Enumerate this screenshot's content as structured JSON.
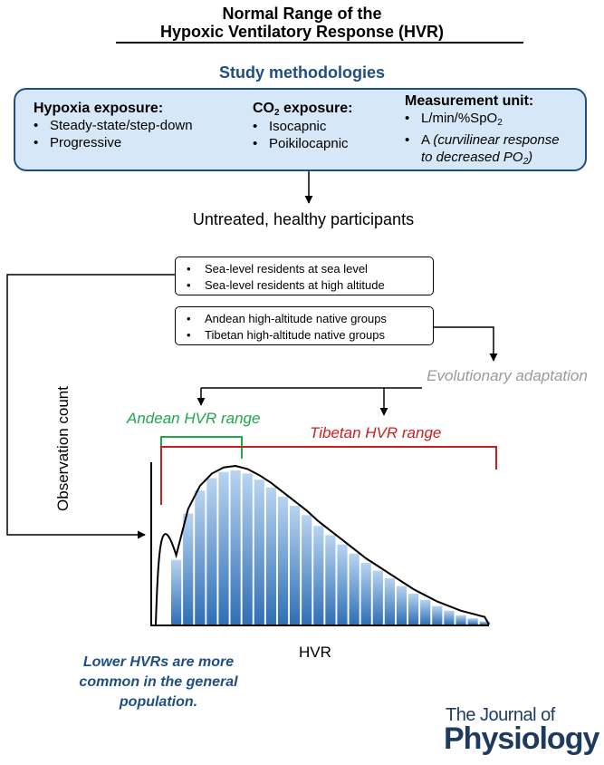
{
  "title": {
    "line1": "Normal Range of the",
    "line2": "Hypoxic Ventilatory Response (HVR)"
  },
  "methodologies": {
    "heading": "Study methodologies",
    "hypoxia": {
      "title": "Hypoxia exposure:",
      "items": [
        "Steady-state/step-down",
        "Progressive"
      ]
    },
    "co2": {
      "title_main": "CO",
      "title_sub": "2",
      "title_tail": " exposure:",
      "items": [
        "Isocapnic",
        "Poikilocapnic"
      ]
    },
    "unit": {
      "title": "Measurement unit:",
      "item1_main": "L/min/%SpO",
      "item1_sub": "2",
      "item2_main": "A ",
      "item2_italic": "(curvilinear response",
      "item2_line2": "to decreased PO",
      "item2_sub": "2",
      "item2_tail": ")"
    }
  },
  "participants": "Untreated, healthy participants",
  "groups1": [
    "Sea-level residents at sea level",
    "Sea-level residents at high altitude"
  ],
  "groups2": [
    "Andean high-altitude native groups",
    "Tibetan high-altitude native groups"
  ],
  "evolution": "Evolutionary adaptation",
  "ranges": {
    "andean": "Andean HVR range",
    "tibetan": "Tibetan HVR range",
    "andean_color": "#22a64a",
    "tibetan_color": "#c81e1e"
  },
  "chart_data": {
    "type": "bar",
    "xlabel": "HVR",
    "ylabel": "Observation count",
    "bar_color": "#4a8fd4",
    "values": [
      0.42,
      0.72,
      0.87,
      0.95,
      0.99,
      1.0,
      0.98,
      0.94,
      0.89,
      0.83,
      0.77,
      0.71,
      0.64,
      0.58,
      0.52,
      0.46,
      0.4,
      0.35,
      0.3,
      0.25,
      0.2,
      0.16,
      0.12,
      0.09,
      0.06,
      0.04,
      0.02
    ]
  },
  "note": "Lower HVRs are more common in the general population.",
  "journal": {
    "line1": "The Journal of",
    "line2": "Physiology"
  }
}
